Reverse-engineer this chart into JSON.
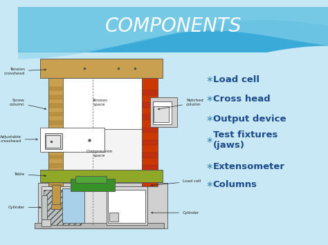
{
  "title": "COMPONENTS",
  "title_color": "#ffffff",
  "title_fontsize": 20,
  "bullet_items": [
    "Load cell",
    "Cross head",
    "Output device",
    "Test fixtures\n(jaws)",
    "Extensometer",
    "Columns"
  ],
  "bullet_color": "#1a4a8a",
  "bullet_fontsize": 9.5,
  "bullet_star_color": "#3a8ab8",
  "bg_main": "#c8e8f5",
  "bg_top": "#3aaad8",
  "wave1_color": "#5bbedd",
  "wave2_color": "#8dd4ec",
  "tan": "#c8a050",
  "orange_red": "#cc3800",
  "yellow_green": "#90a828",
  "green": "#389028",
  "gray": "#d0d0d0",
  "gray_dark": "#a0a0a0",
  "light_blue": "#a8d0e8",
  "white": "#ffffff",
  "black": "#101010",
  "edge": "#505050"
}
